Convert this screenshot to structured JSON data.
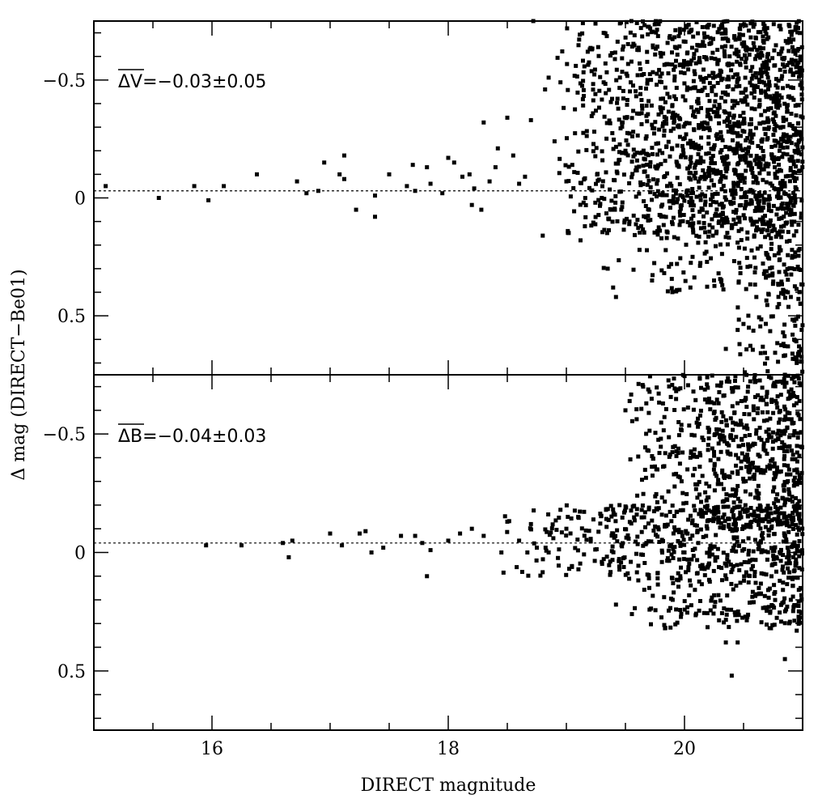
{
  "chart_data": [
    {
      "type": "scatter",
      "panel": "top",
      "xlabel": "DIRECT magnitude",
      "ylabel": "Δ mag (DIRECT−Be01)",
      "xlim": [
        15.0,
        21.0
      ],
      "ylim": [
        -0.75,
        0.75
      ],
      "y_inverted": true,
      "x_ticks": [
        16,
        18,
        20
      ],
      "y_ticks": [
        -0.5,
        0,
        0.5
      ],
      "y_tick_labels": [
        "−0.5",
        "0",
        "0.5"
      ],
      "annotation": {
        "overline": "ΔV",
        "rest": "=−0.03±0.05"
      },
      "mean_line_y": -0.03,
      "seed": 7,
      "points": [
        [
          15.1,
          -0.05
        ],
        [
          15.55,
          0.0
        ],
        [
          15.85,
          -0.05
        ],
        [
          15.97,
          0.01
        ],
        [
          16.1,
          -0.05
        ],
        [
          16.38,
          -0.1
        ],
        [
          16.72,
          -0.07
        ],
        [
          16.8,
          -0.02
        ],
        [
          16.9,
          -0.03
        ],
        [
          16.95,
          -0.15
        ],
        [
          17.08,
          -0.1
        ],
        [
          17.12,
          -0.18
        ],
        [
          17.12,
          -0.08
        ],
        [
          17.22,
          0.05
        ],
        [
          17.38,
          -0.01
        ],
        [
          17.38,
          0.08
        ],
        [
          17.5,
          -0.1
        ],
        [
          17.65,
          -0.05
        ],
        [
          17.7,
          -0.14
        ],
        [
          17.72,
          -0.03
        ],
        [
          17.82,
          -0.13
        ],
        [
          17.85,
          -0.06
        ],
        [
          17.95,
          -0.02
        ],
        [
          18.0,
          -0.17
        ],
        [
          18.05,
          -0.15
        ],
        [
          18.12,
          -0.09
        ],
        [
          18.18,
          -0.1
        ],
        [
          18.2,
          0.03
        ],
        [
          18.22,
          -0.04
        ],
        [
          18.28,
          0.05
        ],
        [
          18.3,
          -0.32
        ],
        [
          18.35,
          -0.07
        ],
        [
          18.4,
          -0.13
        ],
        [
          18.42,
          -0.21
        ],
        [
          18.5,
          -0.34
        ],
        [
          18.55,
          -0.18
        ],
        [
          18.6,
          -0.06
        ],
        [
          18.65,
          -0.09
        ],
        [
          18.7,
          -0.33
        ],
        [
          18.72,
          -0.75
        ],
        [
          18.8,
          0.16
        ],
        [
          18.82,
          -0.46
        ],
        [
          18.85,
          -0.51
        ],
        [
          18.9,
          -0.24
        ],
        [
          18.95,
          -0.49
        ],
        [
          19.0,
          -0.07
        ],
        [
          19.05,
          -0.14
        ],
        [
          19.08,
          -0.56
        ],
        [
          19.12,
          0.18
        ],
        [
          19.25,
          -0.37
        ],
        [
          19.3,
          0.0
        ],
        [
          19.35,
          0.3
        ],
        [
          19.42,
          0.42
        ],
        [
          19.5,
          -0.2
        ],
        [
          19.55,
          -0.75
        ],
        [
          19.62,
          -0.57
        ],
        [
          19.7,
          0.05
        ],
        [
          19.8,
          -0.42
        ],
        [
          19.85,
          0.17
        ],
        [
          19.92,
          -0.64
        ],
        [
          20.05,
          0.38
        ],
        [
          20.25,
          0.35
        ],
        [
          20.32,
          0.37
        ],
        [
          20.35,
          0.64
        ],
        [
          20.45,
          0.56
        ],
        [
          20.7,
          0.68
        ],
        [
          20.8,
          0.45
        ],
        [
          20.9,
          0.42
        ],
        [
          20.95,
          0.7
        ],
        [
          20.85,
          0.75
        ]
      ],
      "dense_regions": [
        {
          "x": [
            18.9,
            21.0
          ],
          "y": [
            -0.75,
            0.15
          ],
          "count": 1400
        },
        {
          "x": [
            19.3,
            21.0
          ],
          "y": [
            -0.35,
            0.4
          ],
          "count": 350
        },
        {
          "x": [
            20.4,
            21.0
          ],
          "y": [
            0.2,
            0.75
          ],
          "count": 110
        }
      ]
    },
    {
      "type": "scatter",
      "panel": "bottom",
      "xlabel": "DIRECT magnitude",
      "ylabel": "Δ mag (DIRECT−Be01)",
      "xlim": [
        15.0,
        21.0
      ],
      "ylim": [
        -0.75,
        0.75
      ],
      "y_inverted": true,
      "x_ticks": [
        16,
        18,
        20
      ],
      "x_tick_labels": [
        "16",
        "18",
        "20"
      ],
      "y_ticks": [
        -0.5,
        0,
        0.5
      ],
      "y_tick_labels": [
        "−0.5",
        "0",
        "0.5"
      ],
      "annotation": {
        "overline": "ΔB",
        "rest": "=−0.04±0.03"
      },
      "mean_line_y": -0.04,
      "seed": 13,
      "points": [
        [
          15.95,
          -0.03
        ],
        [
          16.25,
          -0.03
        ],
        [
          16.6,
          -0.04
        ],
        [
          16.65,
          0.02
        ],
        [
          16.68,
          -0.05
        ],
        [
          17.0,
          -0.08
        ],
        [
          17.1,
          -0.03
        ],
        [
          17.25,
          -0.08
        ],
        [
          17.3,
          -0.09
        ],
        [
          17.35,
          0.0
        ],
        [
          17.45,
          -0.02
        ],
        [
          17.6,
          -0.07
        ],
        [
          17.72,
          -0.07
        ],
        [
          17.78,
          -0.04
        ],
        [
          17.82,
          0.1
        ],
        [
          17.85,
          -0.01
        ],
        [
          18.0,
          -0.05
        ],
        [
          18.1,
          -0.08
        ],
        [
          18.2,
          -0.1
        ],
        [
          18.3,
          -0.07
        ],
        [
          18.45,
          0.0
        ],
        [
          18.5,
          -0.13
        ],
        [
          18.6,
          -0.05
        ],
        [
          18.7,
          -0.12
        ],
        [
          18.75,
          -0.02
        ],
        [
          18.85,
          0.0
        ],
        [
          18.95,
          -0.18
        ],
        [
          19.0,
          -0.1
        ],
        [
          19.1,
          -0.15
        ],
        [
          19.3,
          0.04
        ],
        [
          19.45,
          -0.2
        ],
        [
          19.42,
          0.22
        ],
        [
          19.5,
          -0.6
        ],
        [
          19.6,
          -0.24
        ],
        [
          19.65,
          -0.7
        ],
        [
          19.8,
          -0.48
        ],
        [
          19.9,
          0.2
        ],
        [
          19.95,
          -0.55
        ],
        [
          20.0,
          0.0
        ],
        [
          20.05,
          -0.4
        ],
        [
          20.35,
          0.38
        ],
        [
          20.45,
          0.38
        ],
        [
          20.4,
          0.52
        ],
        [
          20.6,
          -0.72
        ],
        [
          20.85,
          0.45
        ],
        [
          20.95,
          0.33
        ],
        [
          20.9,
          0.2
        ]
      ],
      "dense_regions": [
        {
          "x": [
            18.4,
            21.0
          ],
          "y": [
            -0.2,
            0.1
          ],
          "count": 500
        },
        {
          "x": [
            19.5,
            21.0
          ],
          "y": [
            -0.75,
            -0.1
          ],
          "count": 650
        },
        {
          "x": [
            19.5,
            21.0
          ],
          "y": [
            0.1,
            0.32
          ],
          "count": 180
        }
      ]
    }
  ]
}
